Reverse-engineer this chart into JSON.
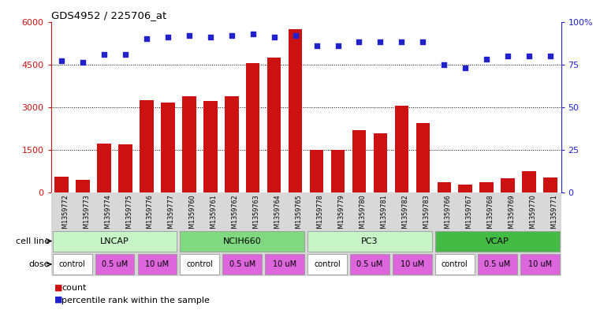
{
  "title": "GDS4952 / 225706_at",
  "samples": [
    "GSM1359772",
    "GSM1359773",
    "GSM1359774",
    "GSM1359775",
    "GSM1359776",
    "GSM1359777",
    "GSM1359760",
    "GSM1359761",
    "GSM1359762",
    "GSM1359763",
    "GSM1359764",
    "GSM1359765",
    "GSM1359778",
    "GSM1359779",
    "GSM1359780",
    "GSM1359781",
    "GSM1359782",
    "GSM1359783",
    "GSM1359766",
    "GSM1359767",
    "GSM1359768",
    "GSM1359769",
    "GSM1359770",
    "GSM1359771"
  ],
  "counts": [
    550,
    430,
    1700,
    1680,
    3250,
    3150,
    3380,
    3200,
    3380,
    4550,
    4750,
    5750,
    1500,
    1480,
    2180,
    2080,
    3050,
    2420,
    340,
    280,
    340,
    490,
    730,
    530
  ],
  "percentiles": [
    77,
    76,
    81,
    81,
    90,
    91,
    92,
    91,
    92,
    93,
    91,
    92,
    86,
    86,
    88,
    88,
    88,
    88,
    75,
    73,
    78,
    80,
    80,
    80
  ],
  "cell_lines": [
    {
      "name": "LNCAP",
      "start": 0,
      "end": 6,
      "color": "#c8f5c8"
    },
    {
      "name": "NCIH660",
      "start": 6,
      "end": 12,
      "color": "#80d880"
    },
    {
      "name": "PC3",
      "start": 12,
      "end": 18,
      "color": "#c8f5c8"
    },
    {
      "name": "VCAP",
      "start": 18,
      "end": 24,
      "color": "#44bb44"
    }
  ],
  "doses": [
    {
      "label": "control",
      "start": 0,
      "end": 2,
      "color": "#ffffff"
    },
    {
      "label": "0.5 uM",
      "start": 2,
      "end": 4,
      "color": "#dd66dd"
    },
    {
      "label": "10 uM",
      "start": 4,
      "end": 6,
      "color": "#dd66dd"
    },
    {
      "label": "control",
      "start": 6,
      "end": 8,
      "color": "#ffffff"
    },
    {
      "label": "0.5 uM",
      "start": 8,
      "end": 10,
      "color": "#dd66dd"
    },
    {
      "label": "10 uM",
      "start": 10,
      "end": 12,
      "color": "#dd66dd"
    },
    {
      "label": "control",
      "start": 12,
      "end": 14,
      "color": "#ffffff"
    },
    {
      "label": "0.5 uM",
      "start": 14,
      "end": 16,
      "color": "#dd66dd"
    },
    {
      "label": "10 uM",
      "start": 16,
      "end": 18,
      "color": "#dd66dd"
    },
    {
      "label": "control",
      "start": 18,
      "end": 20,
      "color": "#ffffff"
    },
    {
      "label": "0.5 uM",
      "start": 20,
      "end": 22,
      "color": "#dd66dd"
    },
    {
      "label": "10 uM",
      "start": 22,
      "end": 24,
      "color": "#dd66dd"
    }
  ],
  "bar_color": "#cc1111",
  "dot_color": "#2222cc",
  "ylim_left": [
    0,
    6000
  ],
  "ylim_right": [
    0,
    100
  ],
  "yticks_left": [
    0,
    1500,
    3000,
    4500,
    6000
  ],
  "yticks_right": [
    0,
    25,
    50,
    75,
    100
  ],
  "bg_color": "#ffffff",
  "plot_bg": "#ffffff",
  "label_bg": "#d8d8d8"
}
